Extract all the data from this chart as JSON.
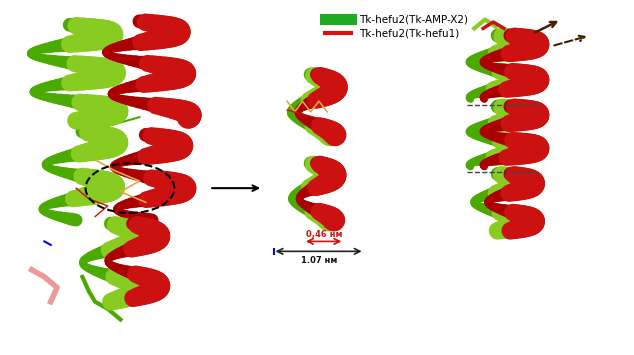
{
  "background_color": "#ffffff",
  "legend_entries": [
    {
      "label": "Tk-hefu2(Tk-AMP-X2)",
      "color": "#22aa22"
    },
    {
      "label": "Tk-hefu2(Tk-hefu1)",
      "color": "#dd1111"
    }
  ],
  "green_light": "#88cc22",
  "green_dark": "#4aaa00",
  "red_light": "#cc1111",
  "red_dark": "#aa0000",
  "fig_width": 6.34,
  "fig_height": 3.55,
  "dpi": 100
}
